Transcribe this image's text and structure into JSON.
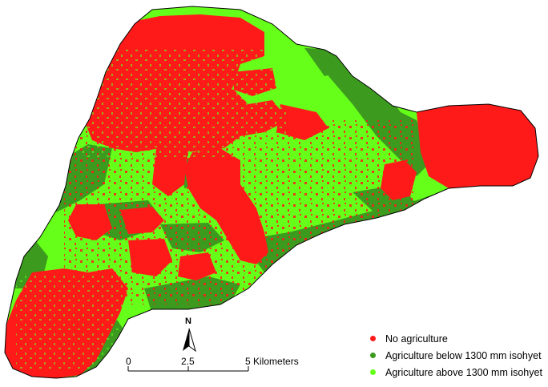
{
  "map": {
    "colors": {
      "no_agriculture": "#ff1a1a",
      "ag_below": "#3c9a1e",
      "ag_above": "#66ff1a"
    }
  },
  "legend": {
    "items": [
      {
        "label": "No agriculture",
        "color": "#ff1a1a"
      },
      {
        "label": "Agriculture below 1300 mm isohyet",
        "color": "#3c9a1e"
      },
      {
        "label": "Agriculture above 1300 mm isohyet",
        "color": "#66ff1a"
      }
    ]
  },
  "north_arrow": {
    "label": "N",
    "icon": "north-arrow-icon"
  },
  "scale_bar": {
    "tick_labels": [
      "0",
      "2.5",
      "5 Kilometers"
    ]
  }
}
